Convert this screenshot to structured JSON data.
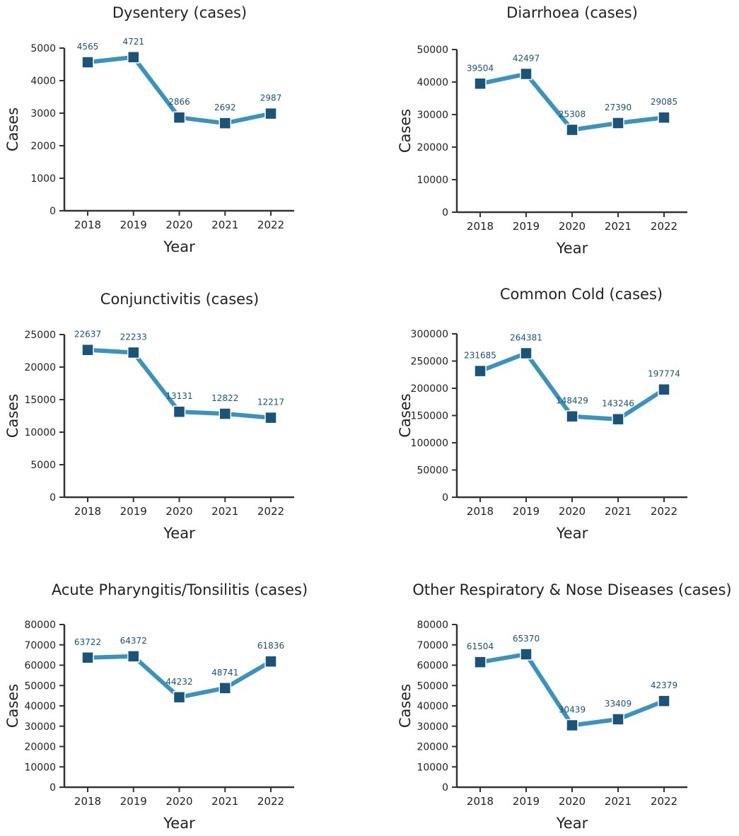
{
  "colors": {
    "line": "#3a93bd",
    "marker": "#1a5478",
    "label": "#1a5478",
    "axis": "#333333",
    "text": "#222222"
  },
  "chart_data": [
    {
      "type": "line",
      "title": "Dysentery (cases)",
      "xlabel": "Year",
      "ylabel": "Cases",
      "categories": [
        "2018",
        "2019",
        "2020",
        "2021",
        "2022"
      ],
      "values": [
        4565,
        4721,
        2866,
        2692,
        2987
      ],
      "value_labels": [
        "4565",
        "4721",
        "2866",
        "2692",
        "2987"
      ],
      "ylim": [
        0,
        5000
      ],
      "yticks": [
        "0",
        "1000",
        "2000",
        "3000",
        "4000",
        "5000"
      ],
      "marker": "square",
      "grid": false
    },
    {
      "type": "line",
      "title": "Diarrhoea (cases)",
      "xlabel": "Year",
      "ylabel": "Cases",
      "categories": [
        "2018",
        "2019",
        "2020",
        "2021",
        "2022"
      ],
      "values": [
        39504,
        42497,
        25308,
        27390,
        29085
      ],
      "value_labels": [
        "39504",
        "42497",
        "25308",
        "27390",
        "29085"
      ],
      "ylim": [
        0,
        50000
      ],
      "yticks": [
        "0",
        "10000",
        "20000",
        "30000",
        "40000",
        "50000"
      ],
      "marker": "square",
      "grid": false
    },
    {
      "type": "line",
      "title": "Conjunctivitis (cases)",
      "xlabel": "Year",
      "ylabel": "Cases",
      "categories": [
        "2018",
        "2019",
        "2020",
        "2021",
        "2022"
      ],
      "values": [
        22637,
        22233,
        13131,
        12822,
        12217
      ],
      "value_labels": [
        "22637",
        "22233",
        "13131",
        "12822",
        "12217"
      ],
      "ylim": [
        0,
        25000
      ],
      "yticks": [
        "0",
        "5000",
        "10000",
        "15000",
        "20000",
        "25000"
      ],
      "marker": "square",
      "grid": false
    },
    {
      "type": "line",
      "title": "Common Cold (cases)",
      "xlabel": "Year",
      "ylabel": "Cases",
      "categories": [
        "2018",
        "2019",
        "2020",
        "2021",
        "2022"
      ],
      "values": [
        231685,
        264381,
        148429,
        143246,
        197774
      ],
      "value_labels": [
        "231685",
        "264381",
        "148429",
        "143246",
        "197774"
      ],
      "ylim": [
        0,
        300000
      ],
      "yticks": [
        "0",
        "50000",
        "100000",
        "150000",
        "200000",
        "250000",
        "300000"
      ],
      "marker": "square",
      "grid": false
    },
    {
      "type": "line",
      "title": "Acute Pharyngitis/Tonsilitis (cases)",
      "xlabel": "Year",
      "ylabel": "Cases",
      "categories": [
        "2018",
        "2019",
        "2020",
        "2021",
        "2022"
      ],
      "values": [
        63722,
        64372,
        44232,
        48741,
        61836
      ],
      "value_labels": [
        "63722",
        "64372",
        "44232",
        "48741",
        "61836"
      ],
      "ylim": [
        0,
        80000
      ],
      "yticks": [
        "0",
        "10000",
        "20000",
        "30000",
        "40000",
        "50000",
        "60000",
        "70000",
        "80000"
      ],
      "marker": "square",
      "grid": false
    },
    {
      "type": "line",
      "title": "Other Respiratory & Nose Diseases (cases)",
      "xlabel": "Year",
      "ylabel": "Cases",
      "categories": [
        "2018",
        "2019",
        "2020",
        "2021",
        "2022"
      ],
      "values": [
        61504,
        65370,
        30439,
        33409,
        42379
      ],
      "value_labels": [
        "61504",
        "65370",
        "30439",
        "33409",
        "42379"
      ],
      "ylim": [
        0,
        80000
      ],
      "yticks": [
        "0",
        "10000",
        "20000",
        "30000",
        "40000",
        "50000",
        "60000",
        "70000",
        "80000"
      ],
      "marker": "square",
      "grid": false
    }
  ]
}
